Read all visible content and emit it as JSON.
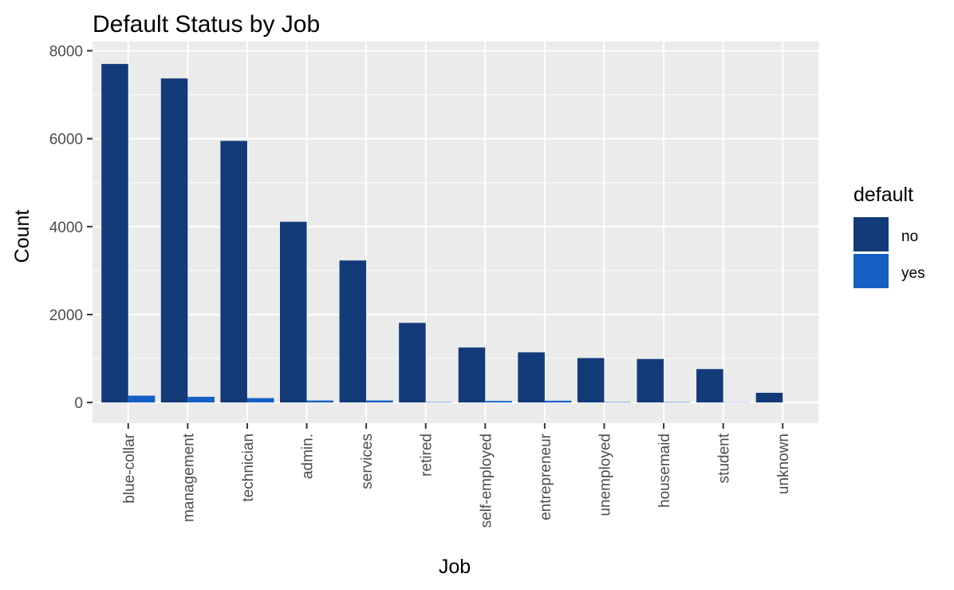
{
  "chart_data": {
    "type": "bar",
    "title": "Default Status by Job",
    "xlabel": "Job",
    "ylabel": "Count",
    "categories": [
      "blue-collar",
      "management",
      "technician",
      "admin.",
      "services",
      "retired",
      "self-employed",
      "entrepreneur",
      "unemployed",
      "housemaid",
      "student",
      "unknown"
    ],
    "series": [
      {
        "name": "no",
        "color": "#133b7a",
        "values": [
          7700,
          7370,
          5950,
          4110,
          3230,
          1810,
          1250,
          1140,
          1010,
          990,
          760,
          220
        ]
      },
      {
        "name": "yes",
        "color": "#1660c4",
        "values": [
          155,
          130,
          100,
          45,
          45,
          10,
          35,
          40,
          10,
          10,
          5,
          0
        ]
      }
    ],
    "ylim": [
      -470,
      8210
    ],
    "yticks": [
      0,
      2000,
      4000,
      6000,
      8000
    ],
    "grid": true,
    "legend": {
      "title": "default",
      "position": "right"
    }
  }
}
